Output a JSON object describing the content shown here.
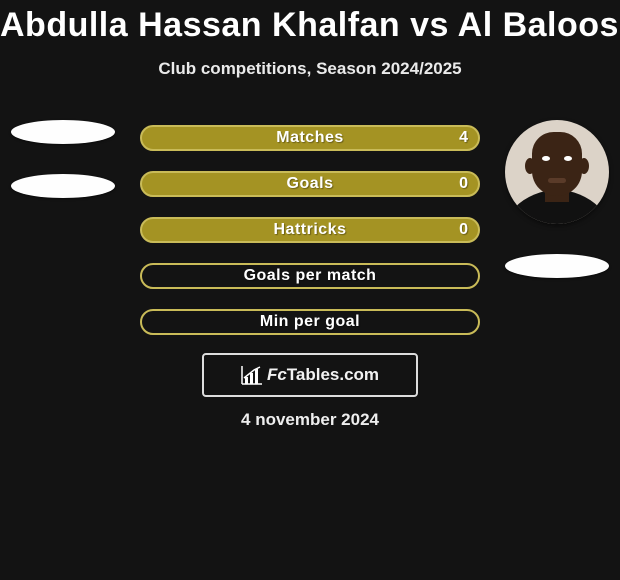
{
  "title": "Abdulla Hassan Khalfan vs Al Balooshi",
  "subtitle": "Club competitions, Season 2024/2025",
  "date": "4 november 2024",
  "logo": {
    "prefix": "Fc",
    "suffix": "Tables.com"
  },
  "colors": {
    "background": "#131313",
    "bar_fill": "#a49323",
    "bar_border": "#c9bb58",
    "text": "#ffffff",
    "logo_border": "#dddddd",
    "oval": "#fefefe"
  },
  "bars": [
    {
      "label": "Matches",
      "left": "",
      "right": "4",
      "filled": true
    },
    {
      "label": "Goals",
      "left": "",
      "right": "0",
      "filled": true
    },
    {
      "label": "Hattricks",
      "left": "",
      "right": "0",
      "filled": true
    },
    {
      "label": "Goals per match",
      "left": "",
      "right": "",
      "filled": false
    },
    {
      "label": "Min per goal",
      "left": "",
      "right": "",
      "filled": false
    }
  ],
  "player_left": {
    "has_avatar": false,
    "ovals": 2
  },
  "player_right": {
    "has_avatar": true,
    "ovals": 1
  }
}
